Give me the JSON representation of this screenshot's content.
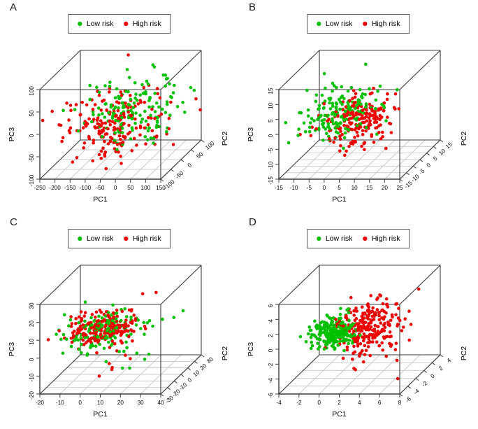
{
  "colors": {
    "low_risk": "#00C000",
    "high_risk": "#EE0000",
    "box": "#3b3b3b",
    "grid": "#cccccc",
    "text": "#000000",
    "background": "#ffffff"
  },
  "chart_data": [
    {
      "type": "scatter3d",
      "label": "A",
      "axes": {
        "x": {
          "title": "PC1",
          "min": -250,
          "max": 150,
          "ticks": [
            -250,
            -200,
            -150,
            -100,
            -50,
            0,
            50,
            100,
            150
          ]
        },
        "y": {
          "title": "PC2",
          "min": -100,
          "max": 100,
          "ticks": [
            -100,
            -50,
            0,
            50,
            100
          ]
        },
        "z": {
          "title": "PC3",
          "min": -100,
          "max": 100,
          "ticks": [
            -100,
            -50,
            0,
            50,
            100
          ]
        }
      },
      "series": [
        {
          "name": "Low risk",
          "color": "#00C000",
          "clusters": [
            {
              "n": 150,
              "mean": [
                -15,
                5,
                3
              ],
              "sd": [
                75,
                38,
                33
              ]
            }
          ],
          "outliers": [
            [
              65,
              60,
              55
            ],
            [
              75,
              55,
              45
            ],
            [
              55,
              65,
              60
            ]
          ]
        },
        {
          "name": "High risk",
          "color": "#EE0000",
          "clusters": [
            {
              "n": 195,
              "mean": [
                -60,
                -10,
                -14
              ],
              "sd": [
                80,
                38,
                34
              ]
            }
          ],
          "outliers": [
            [
              -170,
              -40,
              40
            ],
            [
              -160,
              -35,
              15
            ]
          ]
        }
      ],
      "seed": 11
    },
    {
      "type": "scatter3d",
      "label": "B",
      "axes": {
        "x": {
          "title": "PC1",
          "min": -15,
          "max": 25,
          "ticks": [
            -15,
            -10,
            -5,
            0,
            5,
            10,
            15,
            20,
            25
          ]
        },
        "y": {
          "title": "PC2",
          "min": -15,
          "max": 15,
          "ticks": [
            -15,
            -10,
            -5,
            0,
            5,
            10,
            15
          ]
        },
        "z": {
          "title": "PC3",
          "min": -15,
          "max": 15,
          "ticks": [
            -15,
            -10,
            -5,
            0,
            5,
            10,
            15
          ]
        }
      },
      "series": [
        {
          "name": "Low risk",
          "color": "#00C000",
          "clusters": [
            {
              "n": 175,
              "mean": [
                -2.5,
                0,
                1
              ],
              "sd": [
                6,
                6,
                3.5
              ]
            }
          ],
          "outliers": [
            [
              3,
              9,
              13
            ]
          ]
        },
        {
          "name": "High risk",
          "color": "#EE0000",
          "clusters": [
            {
              "n": 185,
              "mean": [
                5.5,
                -2,
                -1
              ],
              "sd": [
                5.5,
                6,
                3.8
              ]
            },
            {
              "n": 5,
              "mean": [
                9,
                -4,
                -8
              ],
              "sd": [
                5,
                4,
                2
              ]
            }
          ],
          "outliers": [
            [
              18,
              0,
              2
            ]
          ]
        }
      ],
      "seed": 22
    },
    {
      "type": "scatter3d",
      "label": "C",
      "axes": {
        "x": {
          "title": "PC1",
          "min": -20,
          "max": 40,
          "ticks": [
            -20,
            -10,
            0,
            10,
            20,
            30,
            40
          ]
        },
        "y": {
          "title": "PC2",
          "min": -30,
          "max": 30,
          "ticks": [
            -30,
            -20,
            -10,
            0,
            10,
            20,
            30
          ]
        },
        "z": {
          "title": "PC3",
          "min": -20,
          "max": 30,
          "ticks": [
            -20,
            -10,
            0,
            10,
            20,
            30
          ]
        }
      },
      "series": [
        {
          "name": "Low risk",
          "color": "#00C000",
          "clusters": [
            {
              "n": 145,
              "mean": [
                2,
                0,
                4
              ],
              "sd": [
                11,
                10,
                4.5
              ]
            },
            {
              "n": 4,
              "mean": [
                14,
                5,
                -13
              ],
              "sd": [
                8,
                6,
                3
              ]
            }
          ],
          "outliers": [
            [
              35,
              18,
              9
            ],
            [
              28,
              -18,
              -5
            ]
          ]
        },
        {
          "name": "High risk",
          "color": "#EE0000",
          "clusters": [
            {
              "n": 215,
              "mean": [
                0.5,
                0,
                5.5
              ],
              "sd": [
                8,
                9,
                3.8
              ]
            },
            {
              "n": 6,
              "mean": [
                8,
                0,
                -12
              ],
              "sd": [
                6,
                8,
                3
              ]
            }
          ],
          "outliers": [
            [
              21,
              0,
              25
            ],
            [
              27,
              2,
              25
            ]
          ]
        }
      ],
      "seed": 33
    },
    {
      "type": "scatter3d",
      "label": "D",
      "axes": {
        "x": {
          "title": "PC1",
          "min": -4,
          "max": 8,
          "ticks": [
            -4,
            -2,
            0,
            2,
            4,
            6,
            8
          ]
        },
        "y": {
          "title": "PC2",
          "min": -6,
          "max": 4,
          "ticks": [
            -6,
            -4,
            -2,
            0,
            2,
            4
          ]
        },
        "z": {
          "title": "PC3",
          "min": -6,
          "max": 6,
          "ticks": [
            -6,
            -4,
            -2,
            0,
            2,
            4,
            6
          ]
        }
      },
      "series": [
        {
          "name": "Low risk",
          "color": "#00C000",
          "clusters": [
            {
              "n": 255,
              "mean": [
                -0.5,
                -1,
                -0.5
              ],
              "sd": [
                1.0,
                1.0,
                0.85
              ]
            }
          ],
          "outliers": []
        },
        {
          "name": "High risk",
          "color": "#EE0000",
          "clusters": [
            {
              "n": 260,
              "mean": [
                2.9,
                -1,
                0.1
              ],
              "sd": [
                1.5,
                1.5,
                1.7
              ]
            }
          ],
          "outliers": [
            [
              7,
              -4,
              -5
            ]
          ]
        }
      ],
      "seed": 44
    }
  ]
}
